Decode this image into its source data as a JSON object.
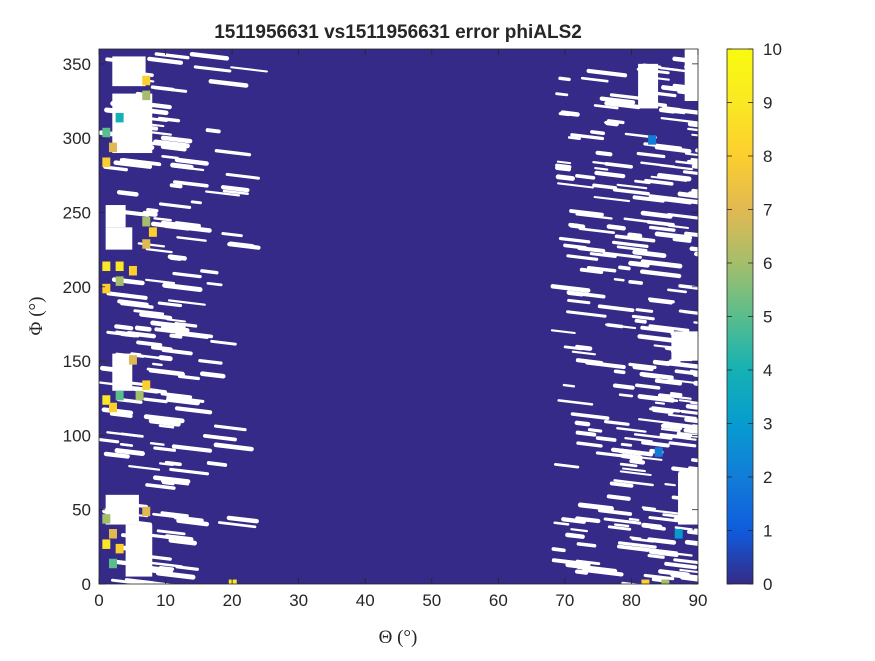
{
  "chart_data": {
    "type": "heatmap",
    "title": "1511956631 vs1511956631 error phiALS2",
    "xlabel": "Θ (°)",
    "ylabel": "Φ (°)",
    "xlim": [
      0,
      90
    ],
    "ylim": [
      0,
      360
    ],
    "xticks": [
      0,
      10,
      20,
      30,
      40,
      50,
      60,
      70,
      80,
      90
    ],
    "yticks": [
      0,
      50,
      100,
      150,
      200,
      250,
      300,
      350
    ],
    "colorbar": {
      "min": 0,
      "max": 10,
      "ticks": [
        0,
        1,
        2,
        3,
        4,
        5,
        6,
        7,
        8,
        9,
        10
      ],
      "colormap": "parula"
    },
    "background_value": 0,
    "hotspots": [
      {
        "theta": 1,
        "phi": 305,
        "value": 5
      },
      {
        "theta": 2,
        "phi": 295,
        "value": 7
      },
      {
        "theta": 1,
        "phi": 285,
        "value": 8
      },
      {
        "theta": 3,
        "phi": 315,
        "value": 4
      },
      {
        "theta": 7,
        "phi": 340,
        "value": 8
      },
      {
        "theta": 7,
        "phi": 330,
        "value": 6
      },
      {
        "theta": 7,
        "phi": 245,
        "value": 6
      },
      {
        "theta": 8,
        "phi": 238,
        "value": 8
      },
      {
        "theta": 7,
        "phi": 230,
        "value": 7
      },
      {
        "theta": 1,
        "phi": 215,
        "value": 9
      },
      {
        "theta": 3,
        "phi": 215,
        "value": 9
      },
      {
        "theta": 5,
        "phi": 212,
        "value": 8
      },
      {
        "theta": 1,
        "phi": 200,
        "value": 8
      },
      {
        "theta": 3,
        "phi": 205,
        "value": 6
      },
      {
        "theta": 5,
        "phi": 152,
        "value": 7
      },
      {
        "theta": 1,
        "phi": 125,
        "value": 9
      },
      {
        "theta": 2,
        "phi": 120,
        "value": 8
      },
      {
        "theta": 3,
        "phi": 128,
        "value": 5
      },
      {
        "theta": 7,
        "phi": 135,
        "value": 8
      },
      {
        "theta": 6,
        "phi": 128,
        "value": 6
      },
      {
        "theta": 1,
        "phi": 45,
        "value": 6
      },
      {
        "theta": 7,
        "phi": 50,
        "value": 7
      },
      {
        "theta": 1,
        "phi": 28,
        "value": 9
      },
      {
        "theta": 2,
        "phi": 35,
        "value": 7
      },
      {
        "theta": 3,
        "phi": 25,
        "value": 8
      },
      {
        "theta": 2,
        "phi": 15,
        "value": 5
      },
      {
        "theta": 20,
        "phi": 1,
        "value": 9
      },
      {
        "theta": 82,
        "phi": 1,
        "value": 8
      },
      {
        "theta": 85,
        "phi": 1,
        "value": 6
      },
      {
        "theta": 87,
        "phi": 35,
        "value": 3
      },
      {
        "theta": 83,
        "phi": 300,
        "value": 2
      },
      {
        "theta": 84,
        "phi": 90,
        "value": 2
      }
    ],
    "nan_regions": [
      {
        "theta": [
          1,
          4
        ],
        "phi": [
          240,
          255
        ]
      },
      {
        "theta": [
          1,
          5
        ],
        "phi": [
          225,
          240
        ]
      },
      {
        "theta": [
          2,
          8
        ],
        "phi": [
          290,
          330
        ]
      },
      {
        "theta": [
          2,
          7
        ],
        "phi": [
          335,
          355
        ]
      },
      {
        "theta": [
          2,
          5
        ],
        "phi": [
          130,
          155
        ]
      },
      {
        "theta": [
          1,
          6
        ],
        "phi": [
          40,
          60
        ]
      },
      {
        "theta": [
          4,
          8
        ],
        "phi": [
          5,
          40
        ]
      },
      {
        "theta": [
          81,
          84
        ],
        "phi": [
          320,
          350
        ]
      },
      {
        "theta": [
          88,
          90
        ],
        "phi": [
          325,
          360
        ]
      },
      {
        "theta": [
          87,
          90
        ],
        "phi": [
          40,
          75
        ]
      },
      {
        "theta": [
          86,
          90
        ],
        "phi": [
          150,
          170
        ]
      }
    ]
  }
}
